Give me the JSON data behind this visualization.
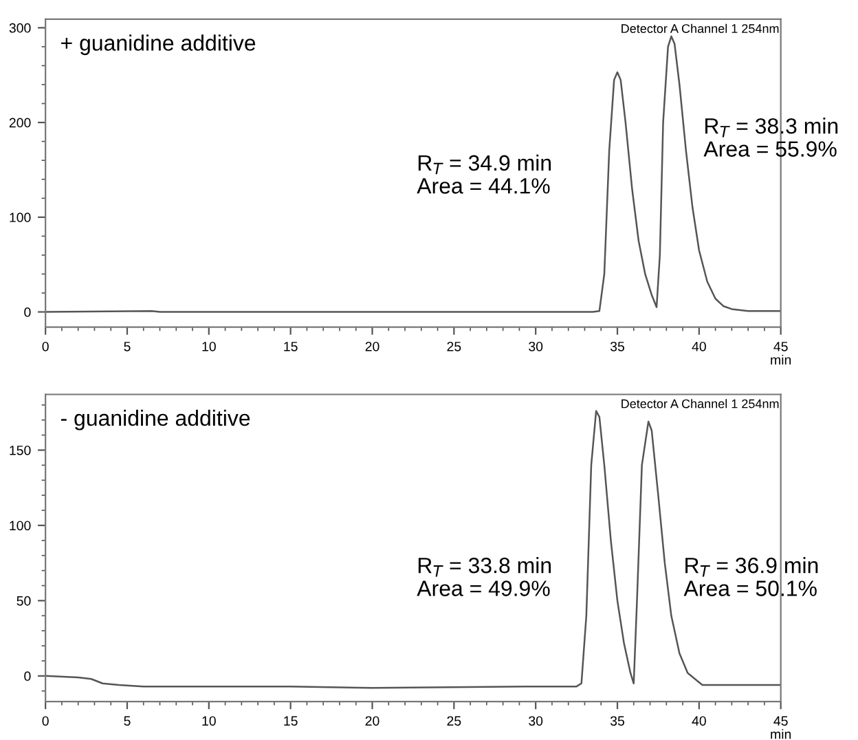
{
  "chart_data": [
    {
      "type": "line",
      "title": "+ guanidine additive",
      "subtitle": "Detector A Channel 1 254nm",
      "xlabel": "min",
      "xlim": [
        0,
        45
      ],
      "xticks": [
        0,
        5,
        10,
        15,
        20,
        25,
        30,
        35,
        40,
        45
      ],
      "ylim": [
        -16,
        309
      ],
      "yticks": [
        0,
        100,
        200,
        300
      ],
      "grid": false,
      "legend": false,
      "marker": "none",
      "line_style": "solid",
      "annotations": [
        "R$_{T}$ = 34.9 min\nArea = 44.1%",
        "R$_{T}$ = 38.3 min\nArea = 55.9%"
      ],
      "series": [
        {
          "color": "#555555",
          "x": [
            0,
            6.5,
            7,
            33.5,
            33.9,
            34.2,
            34.5,
            34.8,
            35.0,
            35.2,
            35.5,
            35.9,
            36.3,
            36.7,
            37.1,
            37.4,
            37.6,
            37.8,
            38.1,
            38.3,
            38.5,
            38.8,
            39.2,
            39.6,
            40.0,
            40.5,
            41.0,
            41.5,
            42.0,
            43,
            45
          ],
          "values": [
            0,
            1,
            0,
            0,
            1,
            40,
            170,
            245,
            253,
            245,
            200,
            130,
            75,
            40,
            18,
            5,
            60,
            200,
            280,
            291,
            283,
            240,
            170,
            110,
            65,
            32,
            14,
            6,
            3,
            1,
            1
          ]
        }
      ]
    },
    {
      "type": "line",
      "title": "- guanidine additive",
      "subtitle": "Detector A Channel 1 254nm",
      "xlabel": "min",
      "xlim": [
        0,
        45
      ],
      "xticks": [
        0,
        5,
        10,
        15,
        20,
        25,
        30,
        35,
        40,
        45
      ],
      "ylim": [
        -17,
        187
      ],
      "yticks": [
        0,
        50,
        100,
        150
      ],
      "grid": false,
      "legend": false,
      "marker": "none",
      "line_style": "solid",
      "annotations": [
        "R$_{T}$ = 33.8 min\nArea = 49.9%",
        "R$_{T}$ = 36.9 min\nArea = 50.1%"
      ],
      "series": [
        {
          "color": "#555555",
          "x": [
            0,
            2,
            2.8,
            3.5,
            4.5,
            6,
            15,
            20,
            30,
            32.5,
            32.8,
            33.1,
            33.4,
            33.7,
            33.9,
            34.2,
            34.6,
            35.0,
            35.4,
            35.8,
            36.0,
            36.2,
            36.5,
            36.9,
            37.1,
            37.5,
            37.9,
            38.3,
            38.8,
            39.3,
            40.2,
            45
          ],
          "values": [
            0,
            -1,
            -2,
            -5,
            -6,
            -7,
            -7,
            -8,
            -7,
            -7,
            -5,
            40,
            140,
            176,
            172,
            140,
            90,
            50,
            22,
            2,
            -5,
            50,
            140,
            169,
            163,
            120,
            75,
            40,
            15,
            2,
            -6,
            -6
          ]
        }
      ]
    }
  ]
}
